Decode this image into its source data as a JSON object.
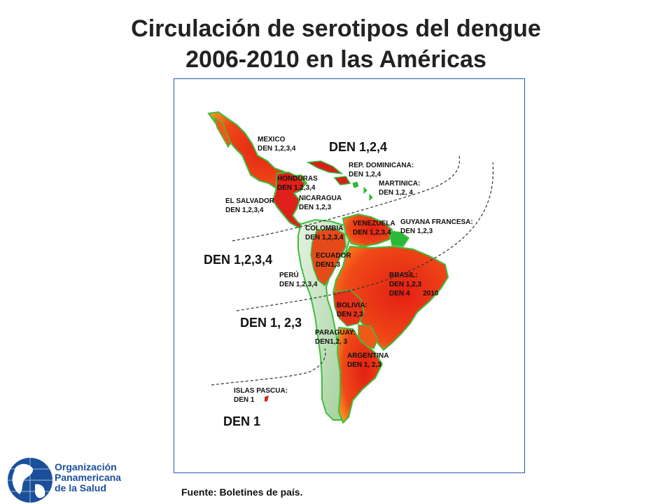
{
  "title": {
    "line1": "Circulación de serotipos del dengue",
    "line2": "2006-2010 en las Américas"
  },
  "zones": [
    {
      "label": "DEN 1,2,4"
    },
    {
      "label": "DEN 1,2,3,4"
    },
    {
      "label": "DEN 1, 2,3"
    },
    {
      "label": "DEN 1"
    }
  ],
  "countries": [
    {
      "name": "MEXICO",
      "serotypes": "DEN 1,2,3,4"
    },
    {
      "name": "HONDURAS",
      "serotypes": "DEN 1,2,3,4"
    },
    {
      "name": "NICARAGUA",
      "serotypes": "DEN 1,2,3"
    },
    {
      "name": "EL SALVADOR",
      "serotypes": "DEN 1,2,3,4"
    },
    {
      "name": "REP. DOMINICANA:",
      "serotypes": "DEN 1,2,4"
    },
    {
      "name": "MARTINICA:",
      "serotypes": "DEN 1,2, 4"
    },
    {
      "name": "GUYANA FRANCESA:",
      "serotypes": "DEN 1,2,3"
    },
    {
      "name": "VENEZUELA",
      "serotypes": "DEN 1,2,3,4"
    },
    {
      "name": "COLOMBIA",
      "serotypes": "DEN 1,2,3,4"
    },
    {
      "name": "ECUADOR",
      "serotypes": "DEN1,3"
    },
    {
      "name": "PERÚ",
      "serotypes": "DEN 1,2,3,4"
    },
    {
      "name": "BRASIL:",
      "serotypes": "DEN 1,2,3",
      "extra": "DEN 4",
      "extra_year": "2010"
    },
    {
      "name": "BOLIVIA:",
      "serotypes": "DEN 2,3"
    },
    {
      "name": "PARAGUAY:",
      "serotypes": "DEN1,2, 3"
    },
    {
      "name": "ARGENTINA",
      "serotypes": "DEN 1, 2,3"
    },
    {
      "name": "ISLAS PASCUA:",
      "serotypes": "DEN 1"
    }
  ],
  "colors": {
    "affected_red": "#e8321a",
    "affected_orange": "#f28a1e",
    "unaffected_green": "#2db83a",
    "light_green": "#b9dcb2",
    "frame_blue": "#2a58a8",
    "logo_blue": "#1a4f9c"
  },
  "source": "Fuente: Boletines de país.",
  "organization": {
    "line1": "Organización",
    "line2": "Panamericana",
    "line3": "de la Salud"
  }
}
